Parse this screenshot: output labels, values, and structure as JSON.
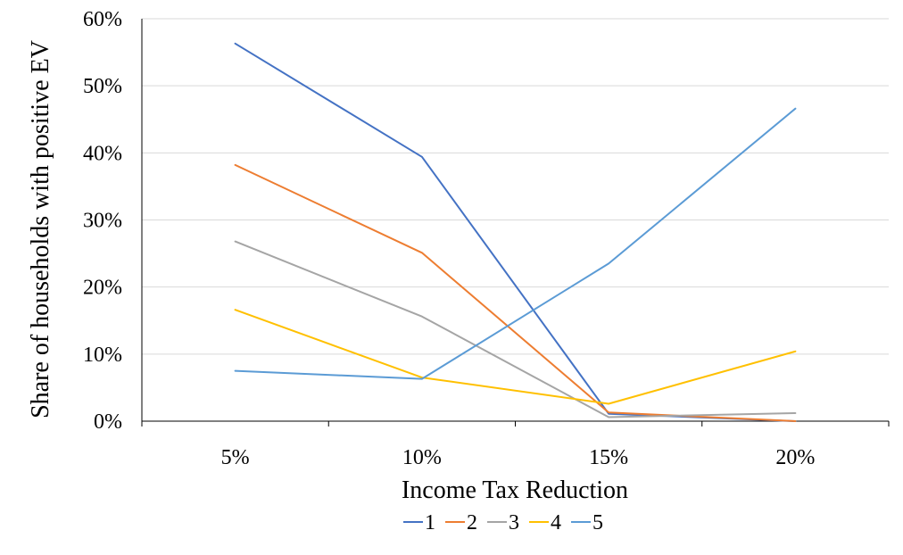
{
  "chart_data": {
    "type": "line",
    "title": "",
    "xlabel": "Income Tax Reduction",
    "ylabel": "Share of households with positive EV",
    "categories": [
      "5%",
      "10%",
      "15%",
      "20%"
    ],
    "ylim": [
      0,
      0.6
    ],
    "yticks": [
      0,
      0.1,
      0.2,
      0.3,
      0.4,
      0.5,
      0.6
    ],
    "ytick_labels": [
      "0%",
      "10%",
      "20%",
      "30%",
      "40%",
      "50%",
      "60%"
    ],
    "grid": "horizontal",
    "legend_position": "bottom",
    "series": [
      {
        "name": "1",
        "color": "#4472C4",
        "values": [
          0.563,
          0.394,
          0.011,
          0.0
        ]
      },
      {
        "name": "2",
        "color": "#ED7D31",
        "values": [
          0.382,
          0.251,
          0.013,
          0.0
        ]
      },
      {
        "name": "3",
        "color": "#A5A5A5",
        "values": [
          0.268,
          0.156,
          0.006,
          0.012
        ]
      },
      {
        "name": "4",
        "color": "#FFC000",
        "values": [
          0.166,
          0.065,
          0.026,
          0.104
        ]
      },
      {
        "name": "5",
        "color": "#5B9BD5",
        "values": [
          0.075,
          0.063,
          0.235,
          0.466
        ]
      }
    ]
  }
}
